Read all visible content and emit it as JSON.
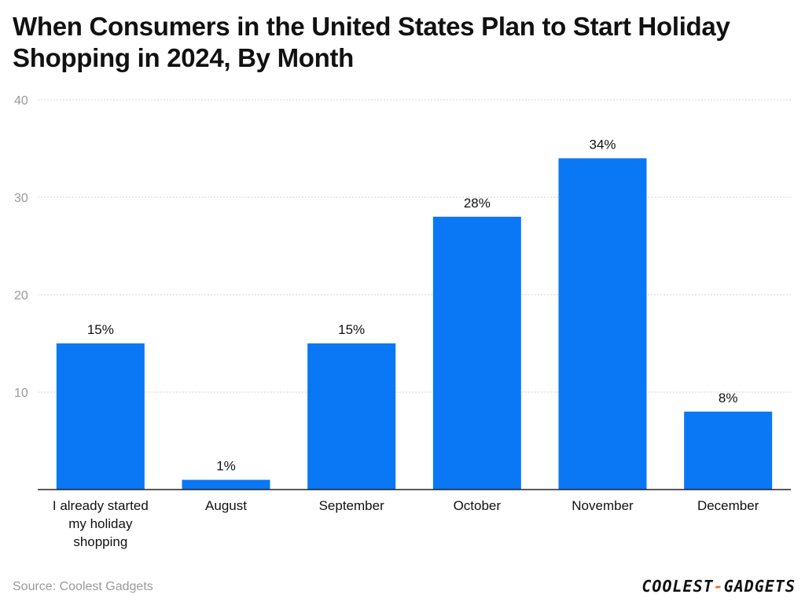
{
  "title": "When Consumers in the United States Plan to Start Holiday Shopping in 2024, By Month",
  "source": "Source: Coolest Gadgets",
  "brand": {
    "left": "COOLEST",
    "dash": "-",
    "right": "GADGETS"
  },
  "colors": {
    "bar": "#0a77f5",
    "grid": "#d6d6d6",
    "axis": "#222222",
    "tick": "#9a9a9a",
    "text": "#111111"
  },
  "chart_data": {
    "type": "bar",
    "categories": [
      [
        "I already started",
        "my holiday",
        "shopping"
      ],
      [
        "August"
      ],
      [
        "September"
      ],
      [
        "October"
      ],
      [
        "November"
      ],
      [
        "December"
      ]
    ],
    "values": [
      15,
      1,
      15,
      28,
      34,
      8
    ],
    "data_labels": [
      "15%",
      "1%",
      "15%",
      "28%",
      "34%",
      "8%"
    ],
    "y_ticks": [
      10,
      20,
      30,
      40
    ],
    "ylim": [
      0,
      40
    ],
    "grid": true,
    "legend": "none"
  }
}
